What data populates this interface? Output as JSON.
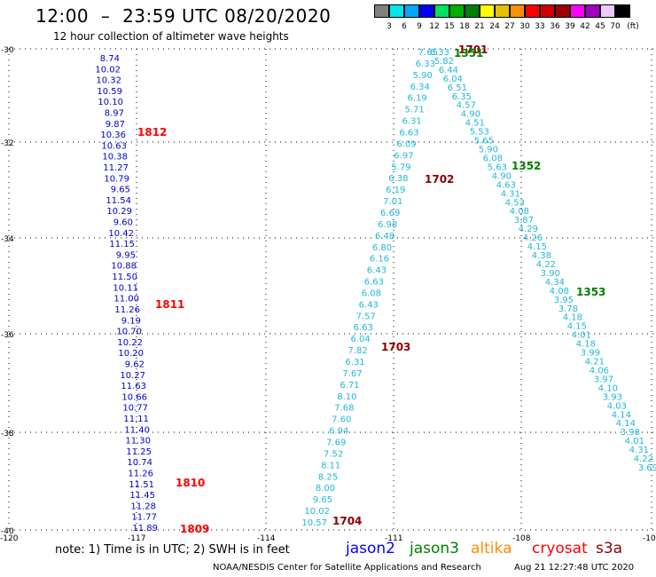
{
  "header": {
    "title": "12:00  –  23:59 UTC 08/20/2020",
    "subtitle": "12 hour collection of altimeter wave heights"
  },
  "color_scale": {
    "unit": "(ft)",
    "levels": [
      "3",
      "6",
      "9",
      "12",
      "15",
      "18",
      "21",
      "24",
      "27",
      "30",
      "33",
      "36",
      "39",
      "42",
      "45",
      "70"
    ],
    "colors": [
      "#7f7f7f",
      "#00e8e8",
      "#00a8ff",
      "#0000ff",
      "#00e060",
      "#00b000",
      "#008000",
      "#ffff00",
      "#e8c000",
      "#ff9000",
      "#ff0000",
      "#d00000",
      "#a00000",
      "#ff00ff",
      "#a000c0",
      "#f0c8ff",
      "#000000"
    ]
  },
  "map": {
    "lat_labels": [
      "-30",
      "-32",
      "-34",
      "-36",
      "-38",
      "-40"
    ],
    "lon_labels": [
      "-120",
      "-117",
      "-114",
      "-111",
      "-108",
      "-10"
    ],
    "left_track": {
      "values": [
        "8.74",
        "10.02",
        "10.32",
        "10.59",
        "10.10",
        "8.97",
        "9.87",
        "10.36",
        "10.63",
        "10.38",
        "11.27",
        "10.79",
        "9.65",
        "11.54",
        "10.29",
        "9.60",
        "10.42",
        "11.15",
        "9.95",
        "10.88",
        "11.50",
        "10.11",
        "11.00",
        "11.26",
        "9.19",
        "10.70",
        "10.22",
        "10.20",
        "9.62",
        "10.27",
        "11.63",
        "10.66",
        "10.77",
        "11.11",
        "11.40",
        "11.30",
        "11.25",
        "10.74",
        "11.26",
        "11.51",
        "11.45",
        "11.28",
        "11.77",
        "11.89"
      ]
    },
    "middle_track": {
      "values": [
        "7.65",
        "6.33",
        "5.90",
        "6.34",
        "6.19",
        "5.71",
        "6.31",
        "6.63",
        "6.09",
        "6.97",
        "5.79",
        "6.38",
        "6.19",
        "7.01",
        "6.69",
        "6.98",
        "6.48",
        "6.80",
        "6.16",
        "6.43",
        "6.63",
        "6.08",
        "6.43",
        "7.57",
        "6.63",
        "6.04",
        "7.82",
        "6.31",
        "7.67",
        "6.71",
        "8.10",
        "7.68",
        "7.60",
        "6.94",
        "7.69",
        "7.52",
        "8.11",
        "8.25",
        "8.00",
        "9.65",
        "10.02",
        "10.57"
      ]
    },
    "right_track": {
      "values": [
        "6.33",
        "5.82",
        "6.44",
        "6.04",
        "6.51",
        "6.35",
        "4.57",
        "4.90",
        "4.51",
        "5.53",
        "5.65",
        "5.90",
        "6.08",
        "5.63",
        "4.90",
        "4.63",
        "4.31",
        "4.53",
        "4.08",
        "3.87",
        "4.29",
        "4.26",
        "4.15",
        "4.38",
        "4.22",
        "3.90",
        "4.34",
        "4.08",
        "3.95",
        "3.78",
        "4.18",
        "4.15",
        "4.01",
        "4.18",
        "3.99",
        "4.21",
        "4.06",
        "3.97",
        "4.10",
        "3.93",
        "4.03",
        "4.14",
        "4.14",
        "3.98",
        "4.01",
        "4.31",
        "4.22",
        "3.69"
      ]
    },
    "time_labels": [
      {
        "text": "1812",
        "color": "#ff0000"
      },
      {
        "text": "1811",
        "color": "#ff0000"
      },
      {
        "text": "1810",
        "color": "#ff0000"
      },
      {
        "text": "1809",
        "color": "#ff0000"
      },
      {
        "text": "1702",
        "color": "#8b0000"
      },
      {
        "text": "1703",
        "color": "#8b0000"
      },
      {
        "text": "1704",
        "color": "#8b0000"
      },
      {
        "text": "1701",
        "color": "#8b0000"
      },
      {
        "text": "1351",
        "color": "#008000"
      },
      {
        "text": "1352",
        "color": "#008000"
      },
      {
        "text": "1353",
        "color": "#008000"
      }
    ]
  },
  "footer": {
    "note": "note:  1) Time is in UTC;  2) SWH is in feet",
    "satellites": [
      {
        "name": "jason2",
        "color": "#0000ff"
      },
      {
        "name": "jason3",
        "color": "#008000"
      },
      {
        "name": "altika",
        "color": "#ff8c00"
      },
      {
        "name": "cryosat",
        "color": "#ff0000"
      },
      {
        "name": "s3a",
        "color": "#8b0000"
      }
    ],
    "credit": "NOAA/NESDIS Center for Satellite Applications and Research",
    "timestamp": "Aug 21 12:27:48 UTC 2020"
  }
}
